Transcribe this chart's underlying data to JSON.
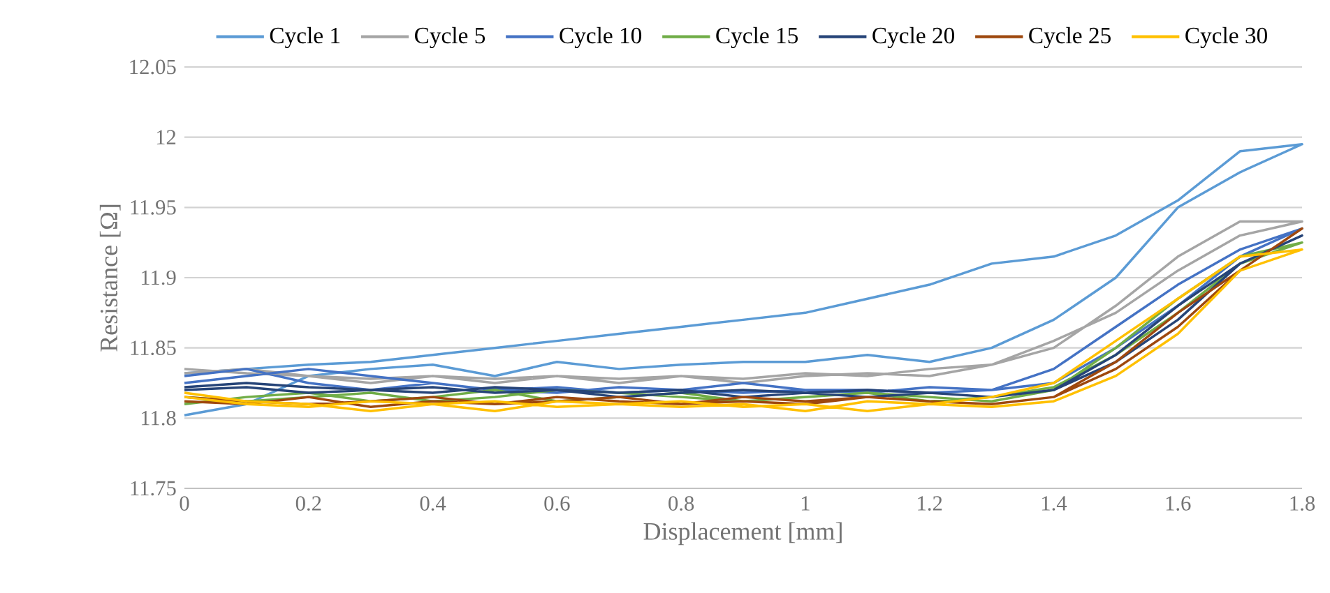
{
  "chart_data": {
    "type": "line",
    "xlabel": "Displacement [mm]",
    "ylabel": "Resistance [Ω]",
    "xlim": [
      0,
      1.8
    ],
    "xticks": [
      0,
      0.2,
      0.4,
      0.6,
      0.8,
      1,
      1.2,
      1.4,
      1.6,
      1.8
    ],
    "ylim": [
      11.75,
      12.05
    ],
    "yticks": [
      11.75,
      11.8,
      11.85,
      11.9,
      11.95,
      12,
      12.05
    ],
    "grid": "y",
    "legend": "top",
    "marker": "none",
    "line_style": "solid",
    "x": [
      0,
      0.1,
      0.2,
      0.3,
      0.4,
      0.5,
      0.6,
      0.7,
      0.8,
      0.9,
      1,
      1.1,
      1.2,
      1.3,
      1.4,
      1.5,
      1.6,
      1.7,
      1.8,
      1.7,
      1.6,
      1.5,
      1.4,
      1.3,
      1.2,
      1.1,
      1,
      0.9,
      0.8,
      0.7,
      0.6,
      0.5,
      0.4,
      0.3,
      0.2,
      0.1,
      0
    ],
    "series": [
      {
        "name": "Cycle 1",
        "color": "#5b9bd5",
        "values": [
          11.802,
          11.81,
          11.83,
          11.835,
          11.838,
          11.83,
          11.84,
          11.835,
          11.838,
          11.84,
          11.84,
          11.845,
          11.84,
          11.85,
          11.87,
          11.9,
          11.95,
          11.975,
          11.995,
          11.99,
          11.955,
          11.93,
          11.915,
          11.91,
          11.895,
          11.885,
          11.875,
          11.87,
          11.865,
          11.86,
          11.855,
          11.85,
          11.845,
          11.84,
          11.838,
          11.835,
          11.832
        ]
      },
      {
        "name": "Cycle 5",
        "color": "#a5a5a5",
        "values": [
          11.832,
          11.835,
          11.83,
          11.828,
          11.83,
          11.825,
          11.83,
          11.828,
          11.83,
          11.825,
          11.83,
          11.832,
          11.83,
          11.838,
          11.855,
          11.875,
          11.905,
          11.93,
          11.94,
          11.94,
          11.915,
          11.88,
          11.85,
          11.838,
          11.835,
          11.83,
          11.832,
          11.828,
          11.83,
          11.825,
          11.83,
          11.828,
          11.83,
          11.825,
          11.83,
          11.832,
          11.835
        ]
      },
      {
        "name": "Cycle 10",
        "color": "#4472c4",
        "values": [
          11.83,
          11.835,
          11.825,
          11.82,
          11.825,
          11.82,
          11.818,
          11.822,
          11.82,
          11.818,
          11.82,
          11.82,
          11.818,
          11.82,
          11.835,
          11.865,
          11.895,
          11.92,
          11.935,
          11.915,
          11.88,
          11.85,
          11.825,
          11.82,
          11.822,
          11.818,
          11.82,
          11.825,
          11.82,
          11.818,
          11.822,
          11.82,
          11.825,
          11.83,
          11.835,
          11.83,
          11.825
        ]
      },
      {
        "name": "Cycle 15",
        "color": "#70ad47",
        "values": [
          11.81,
          11.815,
          11.818,
          11.812,
          11.815,
          11.82,
          11.812,
          11.815,
          11.818,
          11.812,
          11.815,
          11.818,
          11.815,
          11.812,
          11.82,
          11.85,
          11.885,
          11.915,
          11.925,
          11.91,
          11.875,
          11.845,
          11.822,
          11.815,
          11.812,
          11.818,
          11.815,
          11.812,
          11.815,
          11.818,
          11.82,
          11.815,
          11.812,
          11.818,
          11.815,
          11.812,
          11.815
        ]
      },
      {
        "name": "Cycle 20",
        "color": "#264478",
        "values": [
          11.82,
          11.822,
          11.818,
          11.82,
          11.822,
          11.818,
          11.82,
          11.815,
          11.818,
          11.82,
          11.818,
          11.815,
          11.818,
          11.815,
          11.82,
          11.845,
          11.88,
          11.91,
          11.93,
          11.91,
          11.87,
          11.84,
          11.82,
          11.815,
          11.818,
          11.82,
          11.818,
          11.815,
          11.82,
          11.818,
          11.82,
          11.822,
          11.818,
          11.82,
          11.822,
          11.825,
          11.822
        ]
      },
      {
        "name": "Cycle 25",
        "color": "#9e480e",
        "values": [
          11.812,
          11.81,
          11.815,
          11.808,
          11.812,
          11.81,
          11.815,
          11.812,
          11.81,
          11.815,
          11.812,
          11.815,
          11.812,
          11.81,
          11.815,
          11.84,
          11.875,
          11.905,
          11.935,
          11.905,
          11.865,
          11.835,
          11.815,
          11.81,
          11.812,
          11.815,
          11.81,
          11.812,
          11.81,
          11.815,
          11.812,
          11.81,
          11.815,
          11.812,
          11.81,
          11.812,
          11.815
        ]
      },
      {
        "name": "Cycle 30",
        "color": "#ffc000",
        "values": [
          11.815,
          11.81,
          11.808,
          11.812,
          11.81,
          11.805,
          11.812,
          11.81,
          11.808,
          11.81,
          11.805,
          11.812,
          11.81,
          11.815,
          11.825,
          11.855,
          11.885,
          11.915,
          11.92,
          11.905,
          11.86,
          11.83,
          11.812,
          11.808,
          11.81,
          11.805,
          11.81,
          11.808,
          11.812,
          11.81,
          11.808,
          11.812,
          11.81,
          11.805,
          11.81,
          11.812,
          11.818
        ]
      }
    ]
  }
}
